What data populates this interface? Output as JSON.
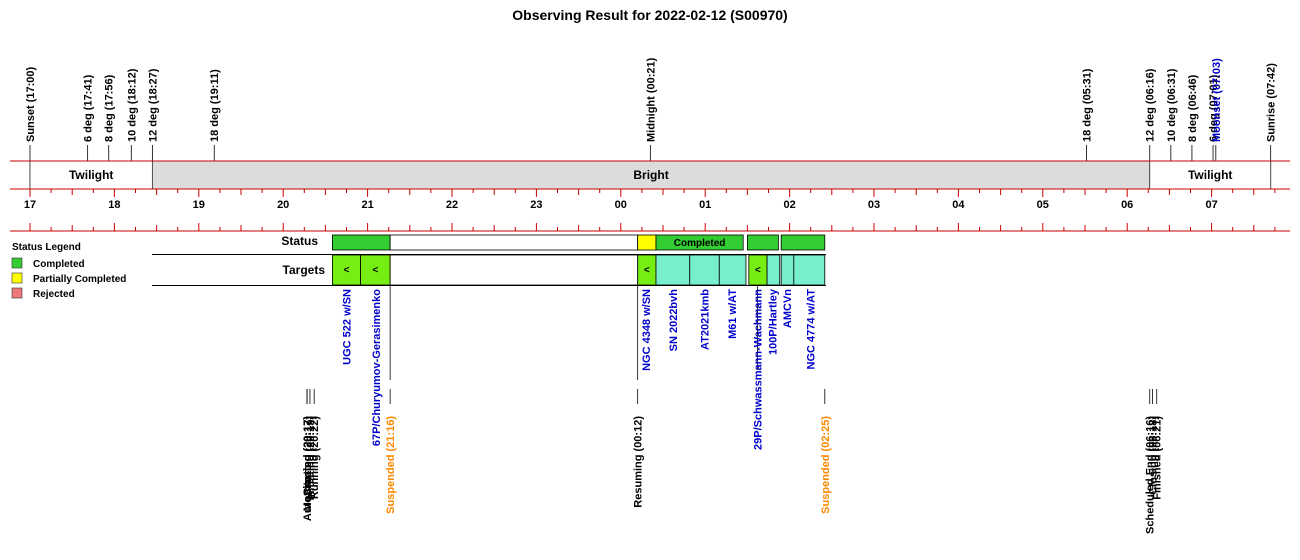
{
  "title": "Observing Result for 2022-02-12 (S00970)",
  "timeline": {
    "hours": [
      "17",
      "18",
      "19",
      "20",
      "21",
      "22",
      "23",
      "00",
      "01",
      "02",
      "03",
      "04",
      "05",
      "06",
      "07"
    ],
    "events": [
      {
        "label": "Sunset (17:00)",
        "t": 17.0,
        "color": "#000000"
      },
      {
        "label": "6 deg (17:41)",
        "t": 17.683,
        "color": "#000000"
      },
      {
        "label": "8 deg (17:56)",
        "t": 17.933,
        "color": "#000000"
      },
      {
        "label": "10 deg (18:12)",
        "t": 18.2,
        "color": "#000000"
      },
      {
        "label": "12 deg (18:27)",
        "t": 18.45,
        "color": "#000000"
      },
      {
        "label": "18 deg (19:11)",
        "t": 19.183,
        "color": "#000000"
      },
      {
        "label": "Midnight (00:21)",
        "t": 24.35,
        "color": "#000000"
      },
      {
        "label": "18 deg (05:31)",
        "t": 29.517,
        "color": "#000000"
      },
      {
        "label": "12 deg (06:16)",
        "t": 30.267,
        "color": "#000000"
      },
      {
        "label": "10 deg (06:31)",
        "t": 30.517,
        "color": "#000000"
      },
      {
        "label": "8 deg (06:46)",
        "t": 30.767,
        "color": "#000000"
      },
      {
        "label": "6 deg (07:01)",
        "t": 31.017,
        "color": "#000000"
      },
      {
        "label": "Moonset (07:03)",
        "t": 31.05,
        "color": "#0000cc"
      },
      {
        "label": "Sunrise (07:42)",
        "t": 31.7,
        "color": "#000000"
      }
    ],
    "bands": [
      {
        "label": "Twilight",
        "from": 17.0,
        "to": 18.45,
        "fill": "#ffffff"
      },
      {
        "label": "Bright",
        "from": 18.45,
        "to": 30.267,
        "fill": "#dcdcdc"
      },
      {
        "label": "Twilight",
        "from": 30.267,
        "to": 31.7,
        "fill": "#ffffff"
      }
    ]
  },
  "legend": {
    "title": "Status Legend",
    "items": [
      {
        "label": "Completed",
        "color": "#33cc33"
      },
      {
        "label": "Partially Completed",
        "color": "#ffff00"
      },
      {
        "label": "Rejected",
        "color": "#ee7777"
      }
    ]
  },
  "status_row": {
    "label": "Status",
    "segments": [
      {
        "from": 20.583,
        "to": 21.267,
        "fill": "#33cc33",
        "text": ""
      },
      {
        "from": 21.267,
        "to": 24.2,
        "fill": "#ffffff",
        "text": ""
      },
      {
        "from": 24.2,
        "to": 24.417,
        "fill": "#ffff00",
        "text": ""
      },
      {
        "from": 24.417,
        "to": 25.45,
        "fill": "#33cc33",
        "text": "Completed"
      },
      {
        "from": 25.5,
        "to": 25.867,
        "fill": "#33cc33",
        "text": ""
      },
      {
        "from": 25.9,
        "to": 26.417,
        "fill": "#33cc33",
        "text": ""
      }
    ]
  },
  "targets_row": {
    "label": "Targets",
    "marker": "<",
    "blocks": [
      {
        "from": 20.583,
        "to": 20.917,
        "fill": "#77ee11",
        "marker": true
      },
      {
        "from": 20.917,
        "to": 21.267,
        "fill": "#77ee11",
        "marker": true
      },
      {
        "from": 21.267,
        "to": 24.2,
        "fill": "#ffffff",
        "marker": false
      },
      {
        "from": 24.2,
        "to": 24.417,
        "fill": "#77ee11",
        "marker": true
      },
      {
        "from": 24.417,
        "to": 24.817,
        "fill": "#77eecc",
        "marker": false
      },
      {
        "from": 24.817,
        "to": 25.167,
        "fill": "#77eecc",
        "marker": false
      },
      {
        "from": 25.167,
        "to": 25.483,
        "fill": "#77eecc",
        "marker": false
      },
      {
        "from": 25.517,
        "to": 25.733,
        "fill": "#77ee11",
        "marker": true
      },
      {
        "from": 25.733,
        "to": 25.883,
        "fill": "#77eecc",
        "marker": false
      },
      {
        "from": 25.9,
        "to": 26.05,
        "fill": "#77eecc",
        "marker": false
      },
      {
        "from": 26.05,
        "to": 26.417,
        "fill": "#77eecc",
        "marker": false
      }
    ]
  },
  "target_names": [
    {
      "label": "UGC 522  w/SN",
      "t": 20.75
    },
    {
      "label": "67P/Churyumov-Gerasimenko",
      "t": 21.1
    },
    {
      "label": "NGC 4348  w/SN",
      "t": 24.3
    },
    {
      "label": "SN 2022bvh",
      "t": 24.617
    },
    {
      "label": "AT2021kmb",
      "t": 24.99
    },
    {
      "label": "M61  w/AT",
      "t": 25.32
    },
    {
      "label": "100P/Hartley",
      "t": 25.8
    },
    {
      "label": "AMCVn",
      "t": 25.97
    },
    {
      "label": "NGC 4774  w/AT",
      "t": 26.25
    }
  ],
  "lower_target_names": [
    {
      "label": "29P/Schwassmann-Wachmann",
      "t": 25.62
    }
  ],
  "status_events": [
    {
      "label": "Monitoring (20:17)",
      "t": 20.283,
      "color": "#000000"
    },
    {
      "label": "AutoStarting (20:17)",
      "t": 20.283,
      "color": "#000000"
    },
    {
      "label": "Created (20:17)",
      "t": 20.283,
      "color": "#000000"
    },
    {
      "label": "Initiating (20:19)",
      "t": 20.317,
      "color": "#000000"
    },
    {
      "label": "Running (20:22)",
      "t": 20.367,
      "color": "#000000"
    },
    {
      "label": "Suspended (21:16)",
      "t": 21.267,
      "color": "#ff8800"
    },
    {
      "label": "Resuming (00:12)",
      "t": 24.2,
      "color": "#000000"
    },
    {
      "label": "Suspended (02:25)",
      "t": 26.417,
      "color": "#ff8800"
    },
    {
      "label": "Scheduled End (06:16)",
      "t": 30.267,
      "color": "#000000"
    },
    {
      "label": "Closing (06:18)",
      "t": 30.3,
      "color": "#000000"
    },
    {
      "label": "Finished (06:21)",
      "t": 30.35,
      "color": "#000000"
    }
  ]
}
